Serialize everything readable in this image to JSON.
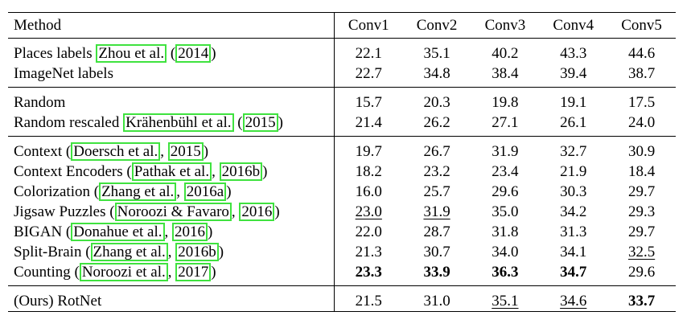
{
  "caption_fragment": "... g ... ... ... ... p ... ... ... ... ... ... g ...",
  "columns": [
    "Method",
    "Conv1",
    "Conv2",
    "Conv3",
    "Conv4",
    "Conv5"
  ],
  "highlight_color": "#3fe23f",
  "rows": [
    {
      "pre": "Places labels ",
      "c1": "Zhou et al.",
      "mid": " (",
      "c2": "2014",
      "post": ")",
      "v": [
        "22.1",
        "35.1",
        "40.2",
        "43.3",
        "44.6"
      ]
    },
    {
      "pre": "ImageNet labels",
      "c1": "",
      "mid": "",
      "c2": "",
      "post": "",
      "v": [
        "22.7",
        "34.8",
        "38.4",
        "39.4",
        "38.7"
      ]
    },
    {
      "pre": "Random",
      "c1": "",
      "mid": "",
      "c2": "",
      "post": "",
      "v": [
        "15.7",
        "20.3",
        "19.8",
        "19.1",
        "17.5"
      ]
    },
    {
      "pre": "Random rescaled ",
      "c1": "Krähenbühl et al.",
      "mid": " (",
      "c2": "2015",
      "post": ")",
      "v": [
        "21.4",
        "26.2",
        "27.1",
        "26.1",
        "24.0"
      ]
    },
    {
      "pre": "Context (",
      "c1": "Doersch et al.",
      "mid": ", ",
      "c2": "2015",
      "post": ")",
      "v": [
        "19.7",
        "26.7",
        "31.9",
        "32.7",
        "30.9"
      ]
    },
    {
      "pre": "Context Encoders (",
      "c1": "Pathak et al.",
      "mid": ", ",
      "c2": "2016b",
      "post": ")",
      "v": [
        "18.2",
        "23.2",
        "23.4",
        "21.9",
        "18.4"
      ]
    },
    {
      "pre": "Colorization (",
      "c1": "Zhang et al.",
      "mid": ", ",
      "c2": "2016a",
      "post": ")",
      "v": [
        "16.0",
        "25.7",
        "29.6",
        "30.3",
        "29.7"
      ]
    },
    {
      "pre": "Jigsaw Puzzles (",
      "c1": "Noroozi & Favaro",
      "mid": ", ",
      "c2": "2016",
      "post": ")",
      "v": [
        "23.0",
        "31.9",
        "35.0",
        "34.2",
        "29.3"
      ]
    },
    {
      "pre": "BIGAN (",
      "c1": "Donahue et al.",
      "mid": ", ",
      "c2": "2016",
      "post": ")",
      "v": [
        "22.0",
        "28.7",
        "31.8",
        "31.3",
        "29.7"
      ]
    },
    {
      "pre": "Split-Brain (",
      "c1": "Zhang et al.",
      "mid": ", ",
      "c2": "2016b",
      "post": ")",
      "v": [
        "21.3",
        "30.7",
        "34.0",
        "34.1",
        "32.5"
      ]
    },
    {
      "pre": "Counting (",
      "c1": "Noroozi et al.",
      "mid": ", ",
      "c2": "2017",
      "post": ")",
      "v": [
        "23.3",
        "33.9",
        "36.3",
        "34.7",
        "29.6"
      ]
    },
    {
      "pre": "(Ours) RotNet",
      "c1": "",
      "mid": "",
      "c2": "",
      "post": "",
      "v": [
        "21.5",
        "31.0",
        "35.1",
        "34.6",
        "33.7"
      ]
    }
  ]
}
